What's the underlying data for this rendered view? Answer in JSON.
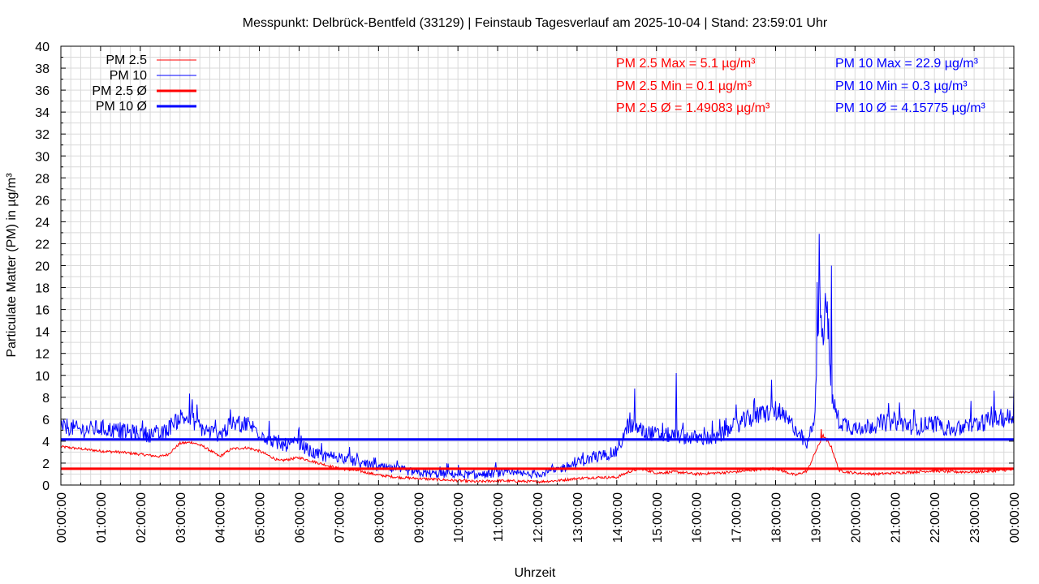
{
  "chart_data": {
    "type": "line",
    "title": "Messpunkt: Delbrück-Bentfeld (33129) | Feinstaub Tagesverlauf am 2025-10-04 | Stand: 23:59:01 Uhr",
    "xlabel": "Uhrzeit",
    "ylabel": "Particulate Matter (PM) in µg/m³",
    "ylim": [
      0,
      40
    ],
    "xlim": [
      "00:00:00",
      "24:00:00"
    ],
    "x_tick_labels": [
      "00:00:00",
      "01:00:00",
      "02:00:00",
      "03:00:00",
      "04:00:00",
      "05:00:00",
      "06:00:00",
      "07:00:00",
      "08:00:00",
      "09:00:00",
      "10:00:00",
      "11:00:00",
      "12:00:00",
      "13:00:00",
      "14:00:00",
      "15:00:00",
      "16:00:00",
      "17:00:00",
      "18:00:00",
      "19:00:00",
      "20:00:00",
      "21:00:00",
      "22:00:00",
      "23:00:00",
      "00:00:00"
    ],
    "y_tick_labels": [
      "0",
      "2",
      "4",
      "6",
      "8",
      "10",
      "12",
      "14",
      "16",
      "18",
      "20",
      "22",
      "24",
      "26",
      "28",
      "30",
      "32",
      "34",
      "36",
      "38",
      "40"
    ],
    "grid": true,
    "legend_position": "top-left",
    "colors": {
      "pm25": "#ff0000",
      "pm10": "#0000ff",
      "grid": "#d9d9d9"
    },
    "series": [
      {
        "name": "PM 2.5",
        "x_hours": [
          0,
          0.5,
          1,
          1.5,
          2,
          2.5,
          2.7,
          3,
          3.3,
          3.6,
          4,
          4.3,
          4.7,
          5,
          5.5,
          6,
          6.5,
          7,
          7.5,
          8,
          8.5,
          9,
          9.5,
          10,
          10.5,
          11,
          11.5,
          12,
          12.5,
          13,
          13.5,
          14,
          14.3,
          14.6,
          15,
          15.5,
          16,
          16.5,
          17,
          17.5,
          18,
          18.5,
          18.8,
          19,
          19.2,
          19.4,
          19.6,
          20,
          20.5,
          21,
          21.5,
          22,
          22.5,
          23,
          23.5,
          24
        ],
        "values": [
          3.5,
          3.3,
          3.1,
          3.0,
          2.8,
          2.6,
          2.8,
          3.8,
          3.9,
          3.5,
          2.6,
          3.3,
          3.4,
          3.1,
          2.2,
          2.5,
          2.0,
          1.5,
          1.3,
          0.9,
          0.7,
          0.6,
          0.5,
          0.4,
          0.3,
          0.4,
          0.35,
          0.3,
          0.4,
          0.6,
          0.7,
          0.7,
          1.2,
          1.5,
          1.1,
          1.2,
          1.0,
          1.1,
          1.2,
          1.4,
          1.5,
          0.9,
          1.3,
          3.0,
          4.5,
          3.5,
          1.3,
          1.1,
          1.0,
          1.1,
          1.2,
          1.3,
          1.2,
          1.2,
          1.3,
          1.4
        ]
      },
      {
        "name": "PM 10",
        "x_hours": [
          0,
          0.5,
          1,
          1.5,
          2,
          2.5,
          2.8,
          3,
          3.3,
          3.6,
          4,
          4.3,
          4.7,
          5,
          5.5,
          6,
          6.3,
          6.6,
          7,
          7.5,
          8,
          8.5,
          9,
          9.5,
          10,
          10.5,
          11,
          11.5,
          12,
          12.5,
          13,
          13.5,
          14,
          14.3,
          14.6,
          15,
          15.5,
          16,
          16.5,
          17,
          17.5,
          18,
          18.5,
          18.8,
          19,
          19.1,
          19.2,
          19.3,
          19.4,
          19.6,
          20,
          20.5,
          21,
          21.5,
          22,
          22.5,
          23,
          23.5,
          24
        ],
        "values": [
          5.5,
          5.0,
          5.2,
          4.9,
          4.7,
          4.5,
          5.5,
          6.2,
          6.0,
          5.0,
          4.6,
          5.5,
          5.6,
          4.8,
          3.6,
          3.8,
          3.0,
          2.6,
          2.6,
          2.0,
          1.6,
          1.4,
          1.1,
          1.0,
          1.0,
          0.9,
          1.1,
          1.0,
          1.0,
          1.4,
          2.0,
          2.6,
          3.0,
          5.5,
          5.0,
          4.6,
          4.5,
          4.3,
          4.2,
          5.5,
          6.3,
          6.8,
          5.2,
          3.5,
          7.0,
          17.0,
          13.0,
          16.0,
          8.0,
          5.8,
          5.2,
          5.5,
          5.8,
          5.3,
          5.6,
          5.0,
          5.5,
          6.0,
          6.2
        ]
      }
    ],
    "peaks": {
      "pm25": [
        {
          "x": 19.15,
          "v": 5.1
        },
        {
          "x": 19.3,
          "v": 4.2
        }
      ],
      "pm10": [
        {
          "x": 19.1,
          "v": 22.9
        },
        {
          "x": 19.05,
          "v": 18.5
        },
        {
          "x": 19.4,
          "v": 20.0
        },
        {
          "x": 19.25,
          "v": 17.5
        },
        {
          "x": 15.5,
          "v": 10.2
        },
        {
          "x": 17.9,
          "v": 9.6
        },
        {
          "x": 24.0,
          "v": 9.0
        },
        {
          "x": 14.45,
          "v": 8.8
        }
      ]
    },
    "mean_lines": [
      {
        "name": "PM 2.5 Ø",
        "value": 1.49083
      },
      {
        "name": "PM 10 Ø",
        "value": 4.15775
      }
    ],
    "annotations": {
      "pm25_max": "PM 2.5 Max = 5.1 µg/m³",
      "pm25_min": "PM 2.5 Min = 0.1 µg/m³",
      "pm25_avg": "PM 2.5 Ø = 1.49083 µg/m³",
      "pm10_max": "PM 10 Max = 22.9 µg/m³",
      "pm10_min": "PM 10 Min = 0.3 µg/m³",
      "pm10_avg": "PM 10 Ø = 4.15775 µg/m³"
    }
  }
}
